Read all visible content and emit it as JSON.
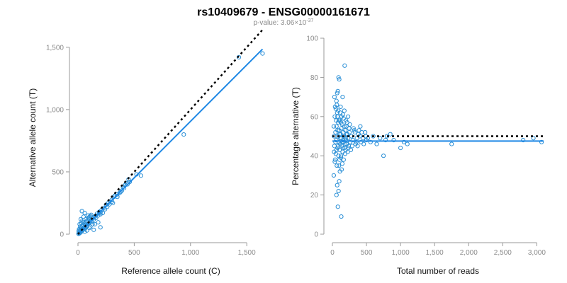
{
  "header": {
    "title": "rs10409679 - ENSG00000161671",
    "pvalue_prefix": "p-value: 3.06",
    "pvalue_times": "×",
    "pvalue_base": "10",
    "pvalue_exponent": "-37"
  },
  "colors": {
    "points": "#2a8fd6",
    "fit_line": "#1e88e5",
    "reference_line": "#000000",
    "axis": "#9a9a9a"
  },
  "chart_data": [
    {
      "type": "scatter",
      "panel": "left",
      "xlabel": "Reference allele count (C)",
      "ylabel": "Alternative allele count (T)",
      "xlim": [
        0,
        1650
      ],
      "ylim": [
        0,
        1550
      ],
      "xticks": [
        0,
        500,
        1000,
        1500
      ],
      "xtick_labels": [
        "0",
        "500",
        "1,000",
        "1,500"
      ],
      "yticks": [
        0,
        500,
        1000,
        1500
      ],
      "ytick_labels": [
        "0",
        "500",
        "1,000",
        "1,500"
      ],
      "points": [
        [
          5,
          3
        ],
        [
          8,
          10
        ],
        [
          12,
          6
        ],
        [
          15,
          15
        ],
        [
          20,
          12
        ],
        [
          25,
          28
        ],
        [
          30,
          20
        ],
        [
          35,
          40
        ],
        [
          40,
          30
        ],
        [
          45,
          38
        ],
        [
          50,
          55
        ],
        [
          55,
          42
        ],
        [
          60,
          60
        ],
        [
          65,
          48
        ],
        [
          70,
          75
        ],
        [
          75,
          62
        ],
        [
          80,
          70
        ],
        [
          90,
          85
        ],
        [
          100,
          90
        ],
        [
          110,
          105
        ],
        [
          120,
          100
        ],
        [
          130,
          125
        ],
        [
          140,
          118
        ],
        [
          150,
          140
        ],
        [
          160,
          130
        ],
        [
          170,
          165
        ],
        [
          180,
          150
        ],
        [
          190,
          180
        ],
        [
          200,
          175
        ],
        [
          210,
          195
        ],
        [
          230,
          210
        ],
        [
          250,
          235
        ],
        [
          270,
          250
        ],
        [
          300,
          275
        ],
        [
          320,
          300
        ],
        [
          350,
          320
        ],
        [
          380,
          340
        ],
        [
          400,
          380
        ],
        [
          420,
          395
        ],
        [
          440,
          400
        ],
        [
          460,
          420
        ],
        [
          520,
          480
        ],
        [
          560,
          470
        ],
        [
          940,
          800
        ],
        [
          1430,
          1420
        ],
        [
          1640,
          1450
        ],
        [
          10,
          40
        ],
        [
          20,
          60
        ],
        [
          30,
          90
        ],
        [
          40,
          110
        ],
        [
          50,
          140
        ],
        [
          60,
          170
        ],
        [
          35,
          185
        ],
        [
          25,
          120
        ],
        [
          90,
          150
        ],
        [
          110,
          60
        ],
        [
          130,
          80
        ],
        [
          60,
          20
        ],
        [
          80,
          30
        ],
        [
          100,
          50
        ],
        [
          150,
          80
        ],
        [
          180,
          95
        ],
        [
          200,
          160
        ],
        [
          220,
          170
        ],
        [
          240,
          200
        ],
        [
          260,
          220
        ],
        [
          280,
          240
        ],
        [
          300,
          260
        ],
        [
          310,
          250
        ],
        [
          330,
          310
        ],
        [
          350,
          300
        ],
        [
          370,
          330
        ],
        [
          390,
          350
        ],
        [
          410,
          370
        ],
        [
          430,
          410
        ],
        [
          450,
          440
        ],
        [
          140,
          35
        ],
        [
          200,
          55
        ],
        [
          15,
          80
        ],
        [
          45,
          95
        ],
        [
          70,
          120
        ],
        [
          95,
          125
        ],
        [
          120,
          140
        ],
        [
          160,
          150
        ],
        [
          190,
          170
        ],
        [
          7,
          25
        ],
        [
          18,
          35
        ],
        [
          28,
          50
        ],
        [
          38,
          65
        ],
        [
          48,
          75
        ],
        [
          58,
          85
        ],
        [
          68,
          95
        ],
        [
          78,
          105
        ],
        [
          88,
          115
        ],
        [
          98,
          135
        ],
        [
          108,
          145
        ],
        [
          118,
          155
        ]
      ],
      "series": [
        {
          "name": "fit",
          "style": "solid",
          "x": [
            0,
            1640
          ],
          "y": [
            0,
            1485
          ]
        },
        {
          "name": "expected",
          "style": "dotted",
          "x": [
            0,
            1640
          ],
          "y": [
            0,
            1640
          ]
        }
      ]
    },
    {
      "type": "scatter",
      "panel": "right",
      "xlabel": "Total number of reads",
      "ylabel": "Percentage alternative (T)",
      "xlim": [
        0,
        3100
      ],
      "ylim": [
        0,
        100
      ],
      "xticks": [
        0,
        500,
        1000,
        1500,
        2000,
        2500,
        3000
      ],
      "xtick_labels": [
        "0",
        "500",
        "1,000",
        "1,500",
        "2,000",
        "2,500",
        "3,000"
      ],
      "yticks": [
        0,
        20,
        40,
        60,
        80,
        100
      ],
      "ytick_labels": [
        "0",
        "20",
        "40",
        "60",
        "80",
        "100"
      ],
      "points": [
        [
          20,
          30
        ],
        [
          25,
          50
        ],
        [
          30,
          45
        ],
        [
          35,
          60
        ],
        [
          40,
          38
        ],
        [
          45,
          52
        ],
        [
          50,
          41
        ],
        [
          55,
          48
        ],
        [
          60,
          55
        ],
        [
          65,
          35
        ],
        [
          70,
          62
        ],
        [
          75,
          44
        ],
        [
          80,
          50
        ],
        [
          85,
          57
        ],
        [
          90,
          40
        ],
        [
          95,
          47
        ],
        [
          100,
          53
        ],
        [
          105,
          43
        ],
        [
          110,
          58
        ],
        [
          115,
          46
        ],
        [
          120,
          51
        ],
        [
          125,
          39
        ],
        [
          130,
          54
        ],
        [
          135,
          49
        ],
        [
          140,
          45
        ],
        [
          145,
          56
        ],
        [
          150,
          42
        ],
        [
          155,
          48
        ],
        [
          160,
          52
        ],
        [
          165,
          47
        ],
        [
          170,
          50
        ],
        [
          180,
          44
        ],
        [
          190,
          53
        ],
        [
          200,
          48
        ],
        [
          210,
          46
        ],
        [
          220,
          51
        ],
        [
          230,
          49
        ],
        [
          240,
          45
        ],
        [
          250,
          52
        ],
        [
          260,
          47
        ],
        [
          280,
          50
        ],
        [
          300,
          48
        ],
        [
          320,
          53
        ],
        [
          340,
          46
        ],
        [
          360,
          49
        ],
        [
          380,
          51
        ],
        [
          400,
          50
        ],
        [
          420,
          47
        ],
        [
          450,
          49
        ],
        [
          480,
          52
        ],
        [
          500,
          48
        ],
        [
          560,
          47
        ],
        [
          600,
          50
        ],
        [
          650,
          46
        ],
        [
          700,
          49
        ],
        [
          750,
          40
        ],
        [
          780,
          48
        ],
        [
          800,
          50
        ],
        [
          850,
          51
        ],
        [
          900,
          48
        ],
        [
          1000,
          44
        ],
        [
          1050,
          47
        ],
        [
          1100,
          46
        ],
        [
          1750,
          46
        ],
        [
          2800,
          48
        ],
        [
          2950,
          49
        ],
        [
          3070,
          47
        ],
        [
          60,
          20
        ],
        [
          70,
          25
        ],
        [
          80,
          14
        ],
        [
          90,
          22
        ],
        [
          100,
          27
        ],
        [
          110,
          32
        ],
        [
          130,
          9
        ],
        [
          50,
          64
        ],
        [
          60,
          68
        ],
        [
          70,
          72
        ],
        [
          80,
          73
        ],
        [
          90,
          80
        ],
        [
          100,
          79
        ],
        [
          120,
          65
        ],
        [
          150,
          70
        ],
        [
          180,
          86
        ],
        [
          200,
          58
        ],
        [
          230,
          60
        ],
        [
          40,
          65
        ],
        [
          30,
          70
        ],
        [
          55,
          58
        ],
        [
          65,
          66
        ],
        [
          75,
          60
        ],
        [
          85,
          63
        ],
        [
          95,
          35
        ],
        [
          105,
          38
        ],
        [
          115,
          62
        ],
        [
          125,
          40
        ],
        [
          135,
          33
        ],
        [
          145,
          36
        ],
        [
          155,
          61
        ],
        [
          165,
          59
        ],
        [
          175,
          55
        ],
        [
          185,
          41
        ],
        [
          195,
          43
        ],
        [
          205,
          55
        ],
        [
          215,
          57
        ],
        [
          225,
          42
        ],
        [
          235,
          44
        ],
        [
          245,
          54
        ],
        [
          255,
          56
        ],
        [
          270,
          43
        ],
        [
          290,
          45
        ],
        [
          310,
          54
        ],
        [
          330,
          52
        ],
        [
          350,
          47
        ],
        [
          370,
          45
        ],
        [
          390,
          53
        ],
        [
          410,
          55
        ],
        [
          430,
          52
        ],
        [
          460,
          46
        ],
        [
          490,
          50
        ],
        [
          520,
          49
        ],
        [
          20,
          55
        ],
        [
          25,
          42
        ],
        [
          35,
          37
        ],
        [
          45,
          47
        ],
        [
          60,
          43
        ],
        [
          75,
          53
        ],
        [
          85,
          45
        ],
        [
          95,
          58
        ],
        [
          105,
          51
        ],
        [
          115,
          49
        ],
        [
          125,
          57
        ],
        [
          135,
          60
        ],
        [
          145,
          47
        ],
        [
          155,
          44
        ],
        [
          165,
          38
        ],
        [
          175,
          63
        ],
        [
          185,
          46
        ],
        [
          195,
          49
        ],
        [
          205,
          51
        ]
      ],
      "series": [
        {
          "name": "fit",
          "style": "solid",
          "x": [
            0,
            3100
          ],
          "y": [
            47.5,
            47.5
          ]
        },
        {
          "name": "expected",
          "style": "dotted",
          "x": [
            0,
            3100
          ],
          "y": [
            50,
            50
          ]
        }
      ]
    }
  ]
}
